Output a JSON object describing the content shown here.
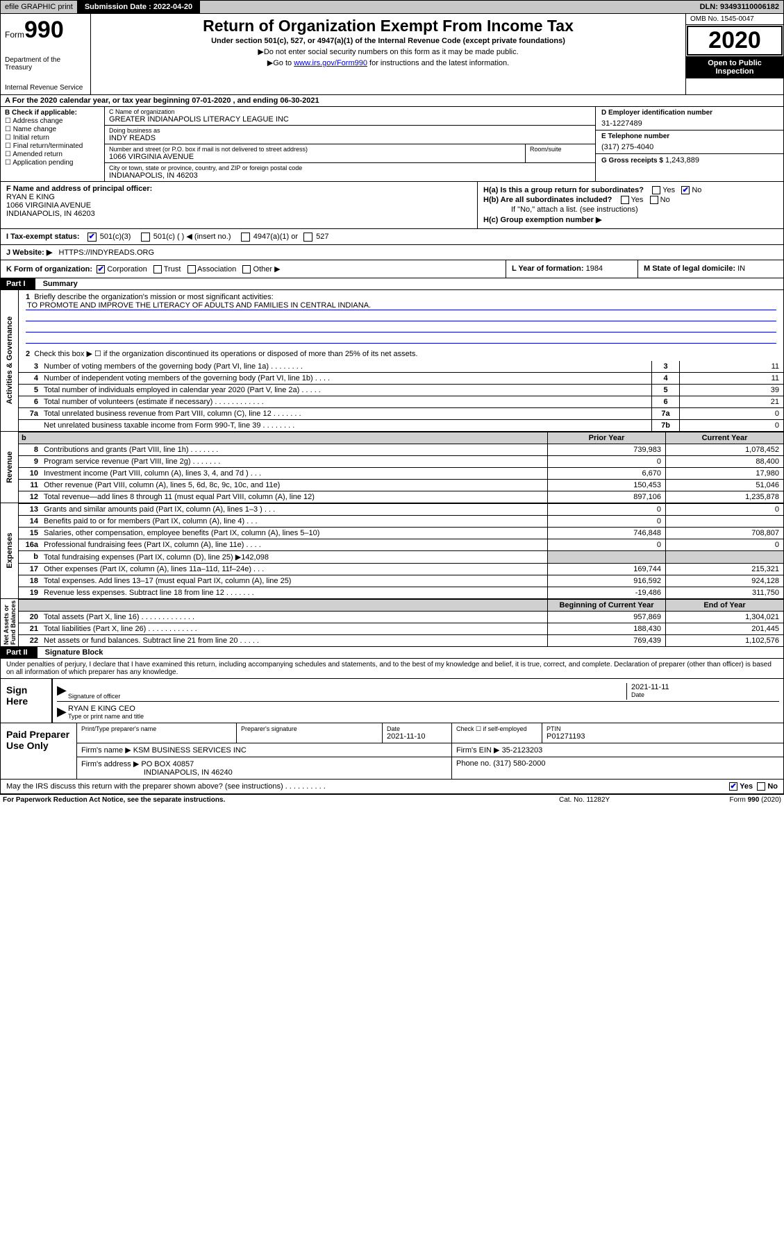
{
  "colors": {
    "link": "#0000cc",
    "shade": "#d0d0d0",
    "topbar": "#c8c8c8"
  },
  "topbar": {
    "efile": "efile GRAPHIC print",
    "subdate_lbl": "Submission Date :",
    "subdate_val": "2022-04-20",
    "dln_lbl": "DLN:",
    "dln_val": "93493110006182"
  },
  "header": {
    "form_word": "Form",
    "form_num": "990",
    "agency1": "Department of the Treasury",
    "agency2": "Internal Revenue Service",
    "title": "Return of Organization Exempt From Income Tax",
    "sub": "Under section 501(c), 527, or 4947(a)(1) of the Internal Revenue Code (except private foundations)",
    "line1": "Do not enter social security numbers on this form as it may be made public.",
    "line2_pre": "Go to ",
    "line2_link": "www.irs.gov/Form990",
    "line2_post": " for instructions and the latest information.",
    "omb": "OMB No. 1545-0047",
    "year": "2020",
    "openpub1": "Open to Public",
    "openpub2": "Inspection"
  },
  "row_a": "A For the 2020 calendar year, or tax year beginning 07-01-2020   , and ending 06-30-2021",
  "boxB": {
    "lbl": "B Check if applicable:",
    "opts": [
      "Address change",
      "Name change",
      "Initial return",
      "Final return/terminated",
      "Amended return",
      "Application pending"
    ]
  },
  "boxC": {
    "name_lbl": "C Name of organization",
    "name_val": "GREATER INDIANAPOLIS LITERACY LEAGUE INC",
    "dba_lbl": "Doing business as",
    "dba_val": "INDY READS",
    "addr_lbl": "Number and street (or P.O. box if mail is not delivered to street address)",
    "room_lbl": "Room/suite",
    "addr_val": "1066 VIRGINIA AVENUE",
    "city_lbl": "City or town, state or province, country, and ZIP or foreign postal code",
    "city_val": "INDIANAPOLIS, IN  46203"
  },
  "boxD": {
    "lbl": "D Employer identification number",
    "val": "31-1227489"
  },
  "boxE": {
    "lbl": "E Telephone number",
    "val": "(317) 275-4040"
  },
  "boxG": {
    "lbl": "G Gross receipts $",
    "val": "1,243,889"
  },
  "boxF": {
    "lbl": "F Name and address of principal officer:",
    "name": "RYAN E KING",
    "addr1": "1066 VIRGINIA AVENUE",
    "addr2": "INDIANAPOLIS, IN  46203"
  },
  "boxH": {
    "ha": "H(a)  Is this a group return for subordinates?",
    "ha_yes": "Yes",
    "ha_no": "No",
    "hb": "H(b)  Are all subordinates included?",
    "hb_note": "If \"No,\" attach a list. (see instructions)",
    "hc": "H(c)  Group exemption number ▶"
  },
  "row_tax": {
    "lbl": "I  Tax-exempt status:",
    "o1": "501(c)(3)",
    "o2": "501(c) (  ) ◀ (insert no.)",
    "o3": "4947(a)(1) or",
    "o4": "527"
  },
  "row_j": {
    "lbl": "J  Website: ▶",
    "val": "HTTPS://INDYREADS.ORG"
  },
  "row_k": {
    "lbl": "K Form of organization:",
    "opts": [
      "Corporation",
      "Trust",
      "Association",
      "Other ▶"
    ]
  },
  "row_l": {
    "lbl": "L Year of formation:",
    "val": "1984"
  },
  "row_m": {
    "lbl": "M State of legal domicile:",
    "val": "IN"
  },
  "partI": {
    "hdr": "Part I",
    "title": "Summary"
  },
  "vlabels": {
    "gov": "Activities & Governance",
    "rev": "Revenue",
    "exp": "Expenses",
    "net": "Net Assets or\nFund Balances"
  },
  "gov": {
    "l1": "Briefly describe the organization's mission or most significant activities:",
    "mission": "TO PROMOTE AND IMPROVE THE LITERACY OF ADULTS AND FAMILIES IN CENTRAL INDIANA.",
    "l2": "Check this box ▶ ☐  if the organization discontinued its operations or disposed of more than 25% of its net assets.",
    "rows": [
      {
        "n": "3",
        "t": "Number of voting members of the governing body (Part VI, line 1a)  .   .   .   .   .   .   .   .",
        "box": "3",
        "v": "11"
      },
      {
        "n": "4",
        "t": "Number of independent voting members of the governing body (Part VI, line 1b)   .   .   .   .",
        "box": "4",
        "v": "11"
      },
      {
        "n": "5",
        "t": "Total number of individuals employed in calendar year 2020 (Part V, line 2a)   .   .   .   .   .",
        "box": "5",
        "v": "39"
      },
      {
        "n": "6",
        "t": "Total number of volunteers (estimate if necessary)   .   .   .   .   .   .   .   .   .   .   .   .",
        "box": "6",
        "v": "21"
      },
      {
        "n": "7a",
        "t": "Total unrelated business revenue from Part VIII, column (C), line 12   .   .   .   .   .   .   .",
        "box": "7a",
        "v": "0"
      },
      {
        "n": "",
        "t": "Net unrelated business taxable income from Form 990-T, line 39   .   .   .   .   .   .   .   .",
        "box": "7b",
        "v": "0"
      }
    ]
  },
  "colhdr": {
    "prior": "Prior Year",
    "curr": "Current Year",
    "beg": "Beginning of Current Year",
    "end": "End of Year"
  },
  "rev": {
    "rows": [
      {
        "n": "8",
        "t": "Contributions and grants (Part VIII, line 1h)   .   .   .   .   .   .   .",
        "p": "739,983",
        "c": "1,078,452"
      },
      {
        "n": "9",
        "t": "Program service revenue (Part VIII, line 2g)   .   .   .   .   .   .   .",
        "p": "0",
        "c": "88,400"
      },
      {
        "n": "10",
        "t": "Investment income (Part VIII, column (A), lines 3, 4, and 7d )   .   .   .",
        "p": "6,670",
        "c": "17,980"
      },
      {
        "n": "11",
        "t": "Other revenue (Part VIII, column (A), lines 5, 6d, 8c, 9c, 10c, and 11e)",
        "p": "150,453",
        "c": "51,046"
      },
      {
        "n": "12",
        "t": "Total revenue—add lines 8 through 11 (must equal Part VIII, column (A), line 12)",
        "p": "897,106",
        "c": "1,235,878"
      }
    ]
  },
  "exp": {
    "rows": [
      {
        "n": "13",
        "t": "Grants and similar amounts paid (Part IX, column (A), lines 1–3 )   .   .   .",
        "p": "0",
        "c": "0"
      },
      {
        "n": "14",
        "t": "Benefits paid to or for members (Part IX, column (A), line 4)   .   .   .",
        "p": "0",
        "c": ""
      },
      {
        "n": "15",
        "t": "Salaries, other compensation, employee benefits (Part IX, column (A), lines 5–10)",
        "p": "746,848",
        "c": "708,807"
      },
      {
        "n": "16a",
        "t": "Professional fundraising fees (Part IX, column (A), line 11e)   .   .   .   .",
        "p": "0",
        "c": "0"
      },
      {
        "n": "b",
        "t": "Total fundraising expenses (Part IX, column (D), line 25) ▶142,098",
        "p": "",
        "c": "",
        "shade": true
      },
      {
        "n": "17",
        "t": "Other expenses (Part IX, column (A), lines 11a–11d, 11f–24e)   .   .   .",
        "p": "169,744",
        "c": "215,321"
      },
      {
        "n": "18",
        "t": "Total expenses. Add lines 13–17 (must equal Part IX, column (A), line 25)",
        "p": "916,592",
        "c": "924,128"
      },
      {
        "n": "19",
        "t": "Revenue less expenses. Subtract line 18 from line 12  .   .   .   .   .   .   .",
        "p": "-19,486",
        "c": "311,750"
      }
    ]
  },
  "net": {
    "rows": [
      {
        "n": "20",
        "t": "Total assets (Part X, line 16)   .   .   .   .   .   .   .   .   .   .   .   .   .",
        "p": "957,869",
        "c": "1,304,021"
      },
      {
        "n": "21",
        "t": "Total liabilities (Part X, line 26)   .   .   .   .   .   .   .   .   .   .   .   .",
        "p": "188,430",
        "c": "201,445"
      },
      {
        "n": "22",
        "t": "Net assets or fund balances. Subtract line 21 from line 20   .   .   .   .   .",
        "p": "769,439",
        "c": "1,102,576"
      }
    ]
  },
  "partII": {
    "hdr": "Part II",
    "title": "Signature Block"
  },
  "decl": "Under penalties of perjury, I declare that I have examined this return, including accompanying schedules and statements, and to the best of my knowledge and belief, it is true, correct, and complete. Declaration of preparer (other than officer) is based on all information of which preparer has any knowledge.",
  "sign": {
    "here": "Sign Here",
    "sig_lbl": "Signature of officer",
    "date_lbl": "Date",
    "date_val": "2021-11-11",
    "name": "RYAN E KING CEO",
    "name_lbl": "Type or print name and title"
  },
  "paid": {
    "lbl": "Paid Preparer Use Only",
    "r1": {
      "c1_lbl": "Print/Type preparer's name",
      "c2_lbl": "Preparer's signature",
      "c3_lbl": "Date",
      "c3_val": "2021-11-10",
      "c4": "Check ☐ if self-employed",
      "c5_lbl": "PTIN",
      "c5_val": "P01271193"
    },
    "r2": {
      "lbl": "Firm's name    ▶",
      "val": "KSM BUSINESS SERVICES INC",
      "ein_lbl": "Firm's EIN ▶",
      "ein_val": "35-2123203"
    },
    "r3": {
      "lbl": "Firm's address ▶",
      "val1": "PO BOX 40857",
      "val2": "INDIANAPOLIS, IN  46240",
      "ph_lbl": "Phone no.",
      "ph_val": "(317) 580-2000"
    }
  },
  "discuss": {
    "txt": "May the IRS discuss this return with the preparer shown above? (see instructions)   .   .   .   .   .   .   .   .   .   .",
    "yes": "Yes",
    "no": "No"
  },
  "footer": {
    "left": "For Paperwork Reduction Act Notice, see the separate instructions.",
    "mid": "Cat. No. 11282Y",
    "right": "Form 990 (2020)"
  }
}
